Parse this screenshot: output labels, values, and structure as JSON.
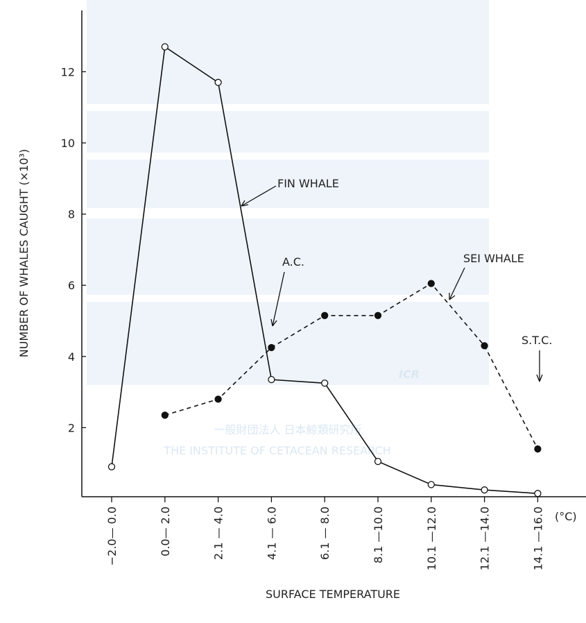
{
  "chart_data": {
    "type": "line",
    "y_label": "NUMBER OF WHALES CAUGHT (×10³)",
    "x_label": "SURFACE TEMPERATURE",
    "x_unit": "(°C)",
    "categories": [
      "−2.0— 0.0",
      "0.0— 2.0",
      "2.1 — 4.0",
      "4.1 — 6.0",
      "6.1 — 8.0",
      "8.1 —10.0",
      "10.1 —12.0",
      "12.1 —14.0",
      "14.1 —16.0"
    ],
    "series": [
      {
        "name": "FIN WHALE",
        "color": "#111111",
        "style": "solid",
        "marker_fill": "#ffffff",
        "values": [
          0.9,
          12.7,
          11.7,
          3.35,
          3.25,
          1.05,
          0.4,
          0.25,
          0.15
        ]
      },
      {
        "name": "SEI WHALE",
        "color": "#111111",
        "style": "dashed",
        "marker_fill": "#111111",
        "values": [
          null,
          2.35,
          2.8,
          4.25,
          5.15,
          5.15,
          6.05,
          4.3,
          1.4
        ]
      }
    ],
    "annotations": [
      "A.C.",
      "S.T.C."
    ],
    "ylim": [
      0,
      13.7
    ],
    "yticks": [
      2,
      4,
      6,
      8,
      10,
      12
    ],
    "watermark": [
      "ICR",
      "一般財団法人 日本鯨類研究所",
      "THE INSTITUTE OF CETACEAN RESEARCH"
    ]
  }
}
